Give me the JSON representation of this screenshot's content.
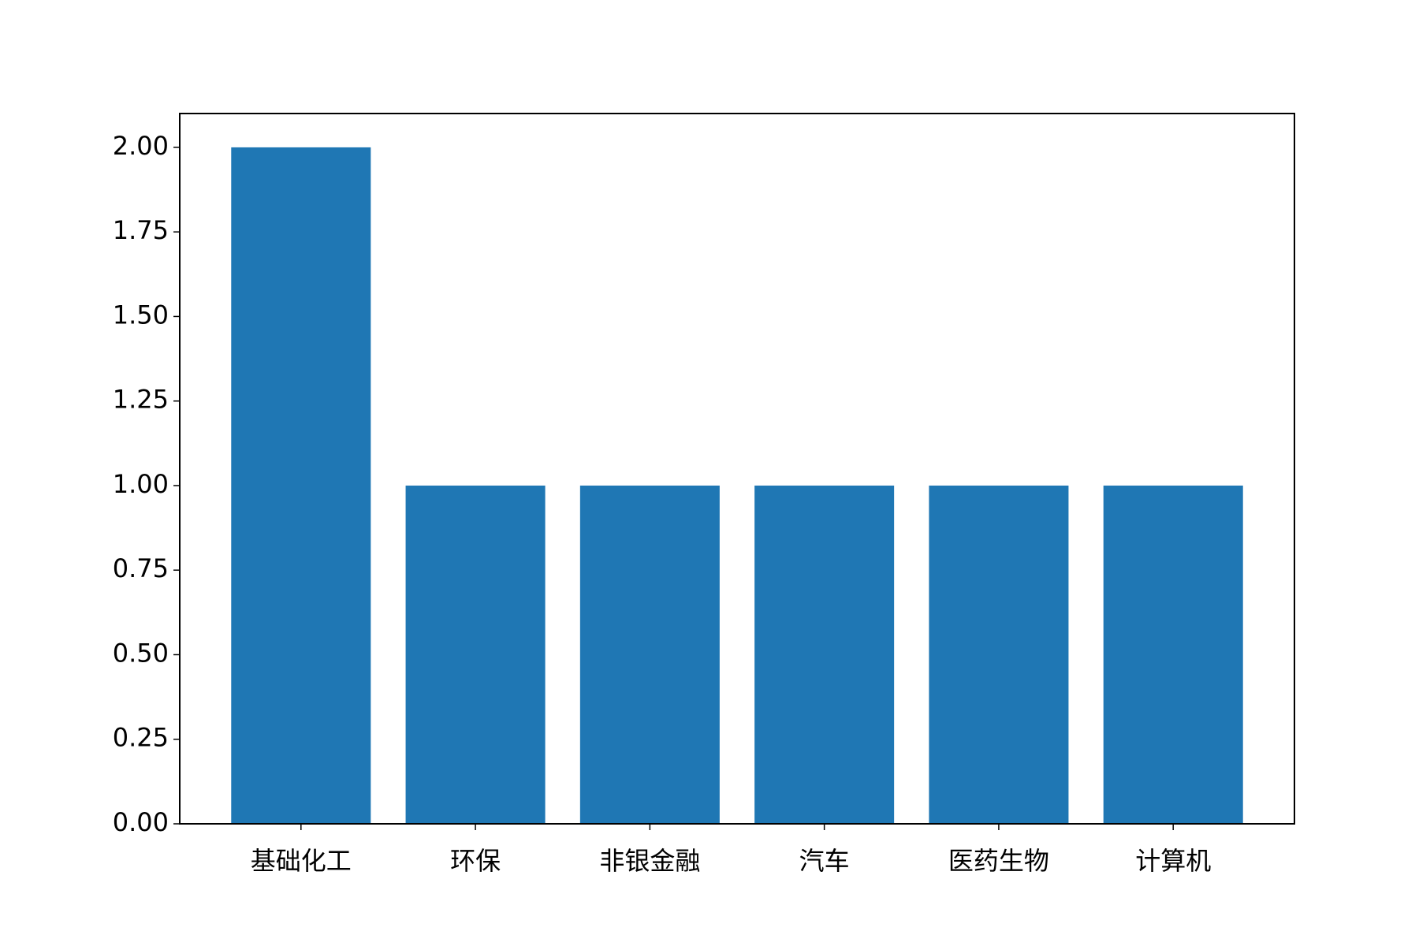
{
  "chart_data": {
    "type": "bar",
    "categories": [
      "基础化工",
      "环保",
      "非银金融",
      "汽车",
      "医药生物",
      "计算机"
    ],
    "values": [
      2,
      1,
      1,
      1,
      1,
      1
    ],
    "color": "#1f77b4",
    "ylim": [
      0,
      2.1
    ],
    "yticks": [
      {
        "value": 0,
        "label": "0.00"
      },
      {
        "value": 0.25,
        "label": "0.25"
      },
      {
        "value": 0.5,
        "label": "0.50"
      },
      {
        "value": 0.75,
        "label": "0.75"
      },
      {
        "value": 1,
        "label": "1.00"
      },
      {
        "value": 1.25,
        "label": "1.25"
      },
      {
        "value": 1.5,
        "label": "1.50"
      },
      {
        "value": 1.75,
        "label": "1.75"
      },
      {
        "value": 2,
        "label": "2.00"
      }
    ],
    "grid": false
  }
}
